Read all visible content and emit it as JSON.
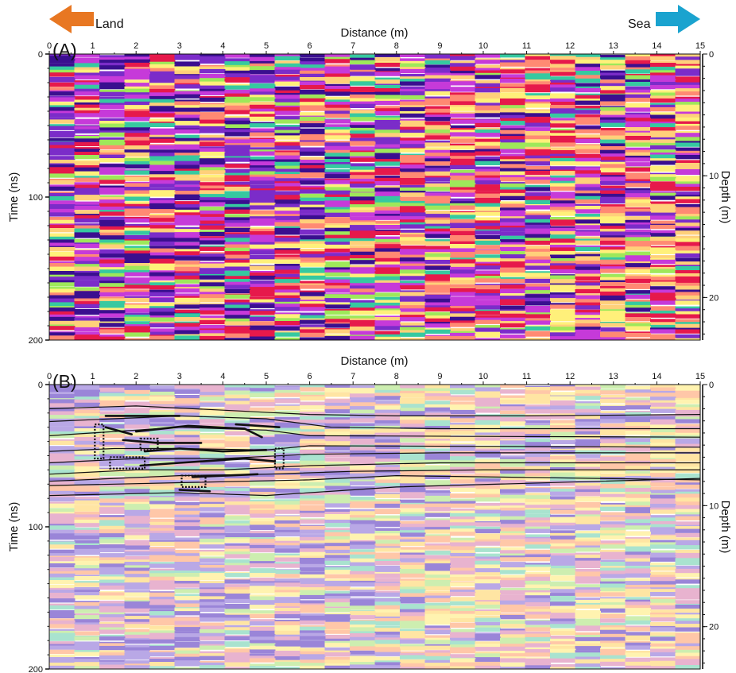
{
  "header": {
    "land_label": "Land",
    "sea_label": "Sea",
    "land_arrow_color": "#e87722",
    "sea_arrow_color": "#1aa3cf"
  },
  "chart_data": [
    {
      "type": "heatmap",
      "panel_label": "(A)",
      "xlabel": "Distance (m)",
      "ylabel": "Time (ns)",
      "y2label": "Depth (m)",
      "xlim": [
        0,
        15
      ],
      "ylim": [
        0,
        200
      ],
      "y2lim": [
        0,
        23.5
      ],
      "x_ticks": [
        "0",
        "1",
        "2",
        "3",
        "4",
        "5",
        "6",
        "7",
        "8",
        "9",
        "10",
        "11",
        "12",
        "13",
        "14",
        "15"
      ],
      "y_ticks": [
        "0",
        "100",
        "200"
      ],
      "y2_ticks": [
        "0",
        "10",
        "20"
      ],
      "colormap": [
        "#3a0f8f",
        "#7b2cc9",
        "#c63ad9",
        "#e6194b",
        "#ff8a73",
        "#ffd07a",
        "#fff07a",
        "#9ee85a",
        "#36c9a0"
      ],
      "interpretation": false
    },
    {
      "type": "heatmap",
      "panel_label": "(B)",
      "xlabel": "Distance (m)",
      "ylabel": "Time (ns)",
      "y2label": "Depth (m)",
      "xlim": [
        0,
        15
      ],
      "ylim": [
        0,
        200
      ],
      "y2lim": [
        0,
        23.5
      ],
      "x_ticks": [
        "0",
        "1",
        "2",
        "3",
        "4",
        "5",
        "6",
        "7",
        "8",
        "9",
        "10",
        "11",
        "12",
        "13",
        "14",
        "15"
      ],
      "y_ticks": [
        "0",
        "100",
        "200"
      ],
      "y2_ticks": [
        "0",
        "10",
        "20"
      ],
      "colormap": [
        "#9a85d8",
        "#b9a8e6",
        "#e8b3cf",
        "#ffc7a8",
        "#ffe5a3",
        "#fff3b0",
        "#cdeeb0",
        "#a9e3cf"
      ],
      "interpretation": true,
      "reflectors": [
        [
          [
            0,
            17
          ],
          [
            2,
            15
          ],
          [
            4,
            18
          ],
          [
            6,
            21
          ],
          [
            8,
            22
          ],
          [
            11,
            22
          ],
          [
            15,
            21
          ]
        ],
        [
          [
            0,
            26
          ],
          [
            1.5,
            24
          ],
          [
            3,
            22
          ],
          [
            5,
            24
          ],
          [
            6.5,
            30
          ],
          [
            9,
            31
          ],
          [
            15,
            31
          ]
        ],
        [
          [
            0,
            36
          ],
          [
            1.5,
            33
          ],
          [
            3,
            30
          ],
          [
            5,
            32
          ],
          [
            6,
            36
          ],
          [
            15,
            37
          ]
        ],
        [
          [
            0,
            47
          ],
          [
            1.5,
            45
          ],
          [
            3,
            45
          ],
          [
            5,
            46
          ],
          [
            6,
            43
          ],
          [
            15,
            44
          ]
        ],
        [
          [
            0,
            55
          ],
          [
            2,
            52
          ],
          [
            4,
            52
          ],
          [
            6,
            49
          ],
          [
            9,
            48
          ],
          [
            15,
            48
          ]
        ],
        [
          [
            0,
            63
          ],
          [
            2,
            60
          ],
          [
            4,
            60
          ],
          [
            6,
            57
          ],
          [
            9,
            55
          ],
          [
            15,
            55
          ]
        ],
        [
          [
            0,
            68
          ],
          [
            3,
            64
          ],
          [
            5,
            63
          ],
          [
            7,
            61
          ],
          [
            10,
            60
          ],
          [
            15,
            60
          ]
        ],
        [
          [
            0,
            71
          ],
          [
            3,
            69
          ],
          [
            6,
            67
          ],
          [
            8,
            64
          ],
          [
            15,
            67
          ]
        ],
        [
          [
            0,
            78
          ],
          [
            3,
            76
          ],
          [
            5,
            78
          ],
          [
            8,
            72
          ],
          [
            15,
            66
          ]
        ]
      ],
      "bold_lines": [
        [
          [
            1.3,
            22
          ],
          [
            3,
            22
          ]
        ],
        [
          [
            1.3,
            30
          ],
          [
            1.9,
            35
          ]
        ],
        [
          [
            2,
            33
          ],
          [
            3.2,
            29
          ],
          [
            4.5,
            31
          ],
          [
            4.9,
            37
          ]
        ],
        [
          [
            1.7,
            39
          ],
          [
            2.5,
            41
          ],
          [
            3.5,
            41
          ]
        ],
        [
          [
            2.2,
            47
          ],
          [
            3,
            45
          ],
          [
            4,
            47
          ],
          [
            5,
            46
          ]
        ],
        [
          [
            2.1,
            57
          ],
          [
            3,
            55
          ],
          [
            4.5,
            52
          ],
          [
            5.2,
            54
          ]
        ],
        [
          [
            3.3,
            65
          ],
          [
            4.8,
            63
          ]
        ],
        [
          [
            3,
            74
          ],
          [
            3.7,
            75
          ]
        ],
        [
          [
            4.3,
            28
          ],
          [
            5.3,
            30
          ]
        ]
      ],
      "dotted_boxes": [
        [
          [
            1.05,
            28
          ],
          [
            1.25,
            52
          ]
        ],
        [
          [
            2.1,
            38
          ],
          [
            2.5,
            46
          ]
        ],
        [
          [
            1.4,
            51
          ],
          [
            2.2,
            59
          ]
        ],
        [
          [
            3.05,
            64
          ],
          [
            3.6,
            72
          ]
        ],
        [
          [
            5.2,
            45
          ],
          [
            5.4,
            59
          ]
        ]
      ]
    }
  ]
}
